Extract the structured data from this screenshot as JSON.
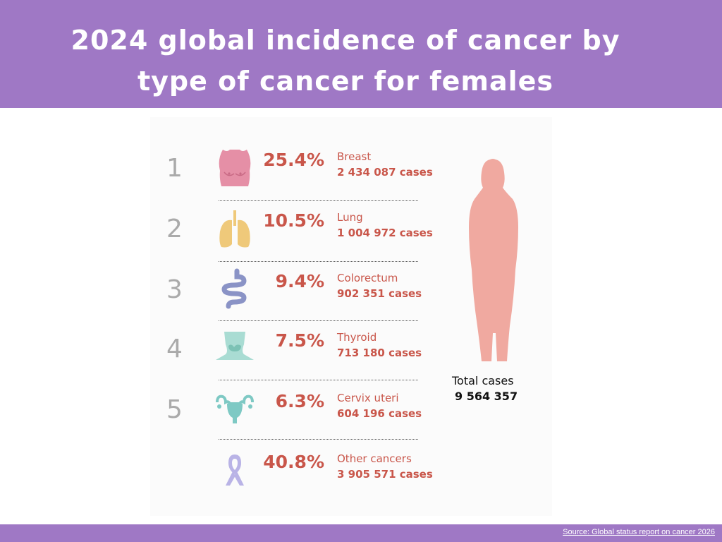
{
  "header": {
    "title_line1": "2024 global incidence of cancer by",
    "title_line2": "type of cancer for females",
    "background_color": "#9f78c5"
  },
  "chart_data": {
    "type": "table",
    "title": "2024 global incidence of cancer by type of cancer for females",
    "columns": [
      "rank",
      "percent",
      "cancer_type",
      "cases"
    ],
    "rows": [
      {
        "rank": "1",
        "percent": "25.4%",
        "name": "Breast",
        "cases": "2 434 087 cases",
        "percent_value": 25.4,
        "cases_value": 2434087,
        "icon": "breast-icon",
        "icon_color": "#e58fa6"
      },
      {
        "rank": "2",
        "percent": "10.5%",
        "name": "Lung",
        "cases": "1 004 972 cases",
        "percent_value": 10.5,
        "cases_value": 1004972,
        "icon": "lungs-icon",
        "icon_color": "#efc97a"
      },
      {
        "rank": "3",
        "percent": "9.4%",
        "name": "Colorectum",
        "cases": "902 351 cases",
        "percent_value": 9.4,
        "cases_value": 902351,
        "icon": "intestine-icon",
        "icon_color": "#8a93c6"
      },
      {
        "rank": "4",
        "percent": "7.5%",
        "name": "Thyroid",
        "cases": "713 180 cases",
        "percent_value": 7.5,
        "cases_value": 713180,
        "icon": "thyroid-icon",
        "icon_color": "#a9dcd3"
      },
      {
        "rank": "5",
        "percent": "6.3%",
        "name": "Cervix uteri",
        "cases": "604 196 cases",
        "percent_value": 6.3,
        "cases_value": 604196,
        "icon": "uterus-icon",
        "icon_color": "#7ec9c4"
      },
      {
        "rank": "",
        "percent": "40.8%",
        "name": "Other cancers",
        "cases": "3 905 571 cases",
        "percent_value": 40.8,
        "cases_value": 3905571,
        "icon": "ribbon-icon",
        "icon_color": "#b9b3e6"
      }
    ],
    "total": {
      "label": "Total cases",
      "value": "9 564 357",
      "value_number": 9564357
    }
  },
  "figure": {
    "silhouette_icon": "female-silhouette-icon",
    "silhouette_color": "#f0a9a0",
    "text_color": "#c9564a"
  },
  "footer": {
    "source": "Source: Global status report on cancer 2026"
  }
}
